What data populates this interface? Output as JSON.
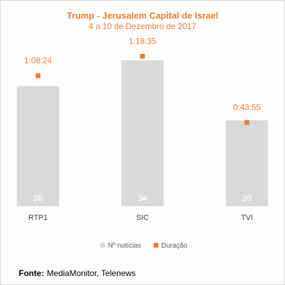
{
  "chart_data": {
    "type": "bar",
    "title": "Trump - Jerusalem Capital de Israel",
    "subtitle": "4 a 10 de Dezembro de 2017",
    "categories": [
      "RTP1",
      "SIC",
      "TVI"
    ],
    "series": [
      {
        "name": "Nº notícias",
        "type": "bar",
        "values": [
          28,
          34,
          20
        ],
        "color": "#d9d9d9"
      },
      {
        "name": "Duração",
        "type": "marker",
        "values_seconds": [
          4104,
          4715,
          2635
        ],
        "labels": [
          "1:08:24",
          "1:18:35",
          "0:43:55"
        ],
        "color": "#ed7d31"
      }
    ],
    "ylim_count": [
      0,
      40
    ],
    "ylim_seconds": [
      0,
      5400
    ],
    "grid": false,
    "legend_position": "bottom"
  },
  "source": {
    "label": "Fonte:",
    "text": "MediaMonitor, Telenews"
  }
}
